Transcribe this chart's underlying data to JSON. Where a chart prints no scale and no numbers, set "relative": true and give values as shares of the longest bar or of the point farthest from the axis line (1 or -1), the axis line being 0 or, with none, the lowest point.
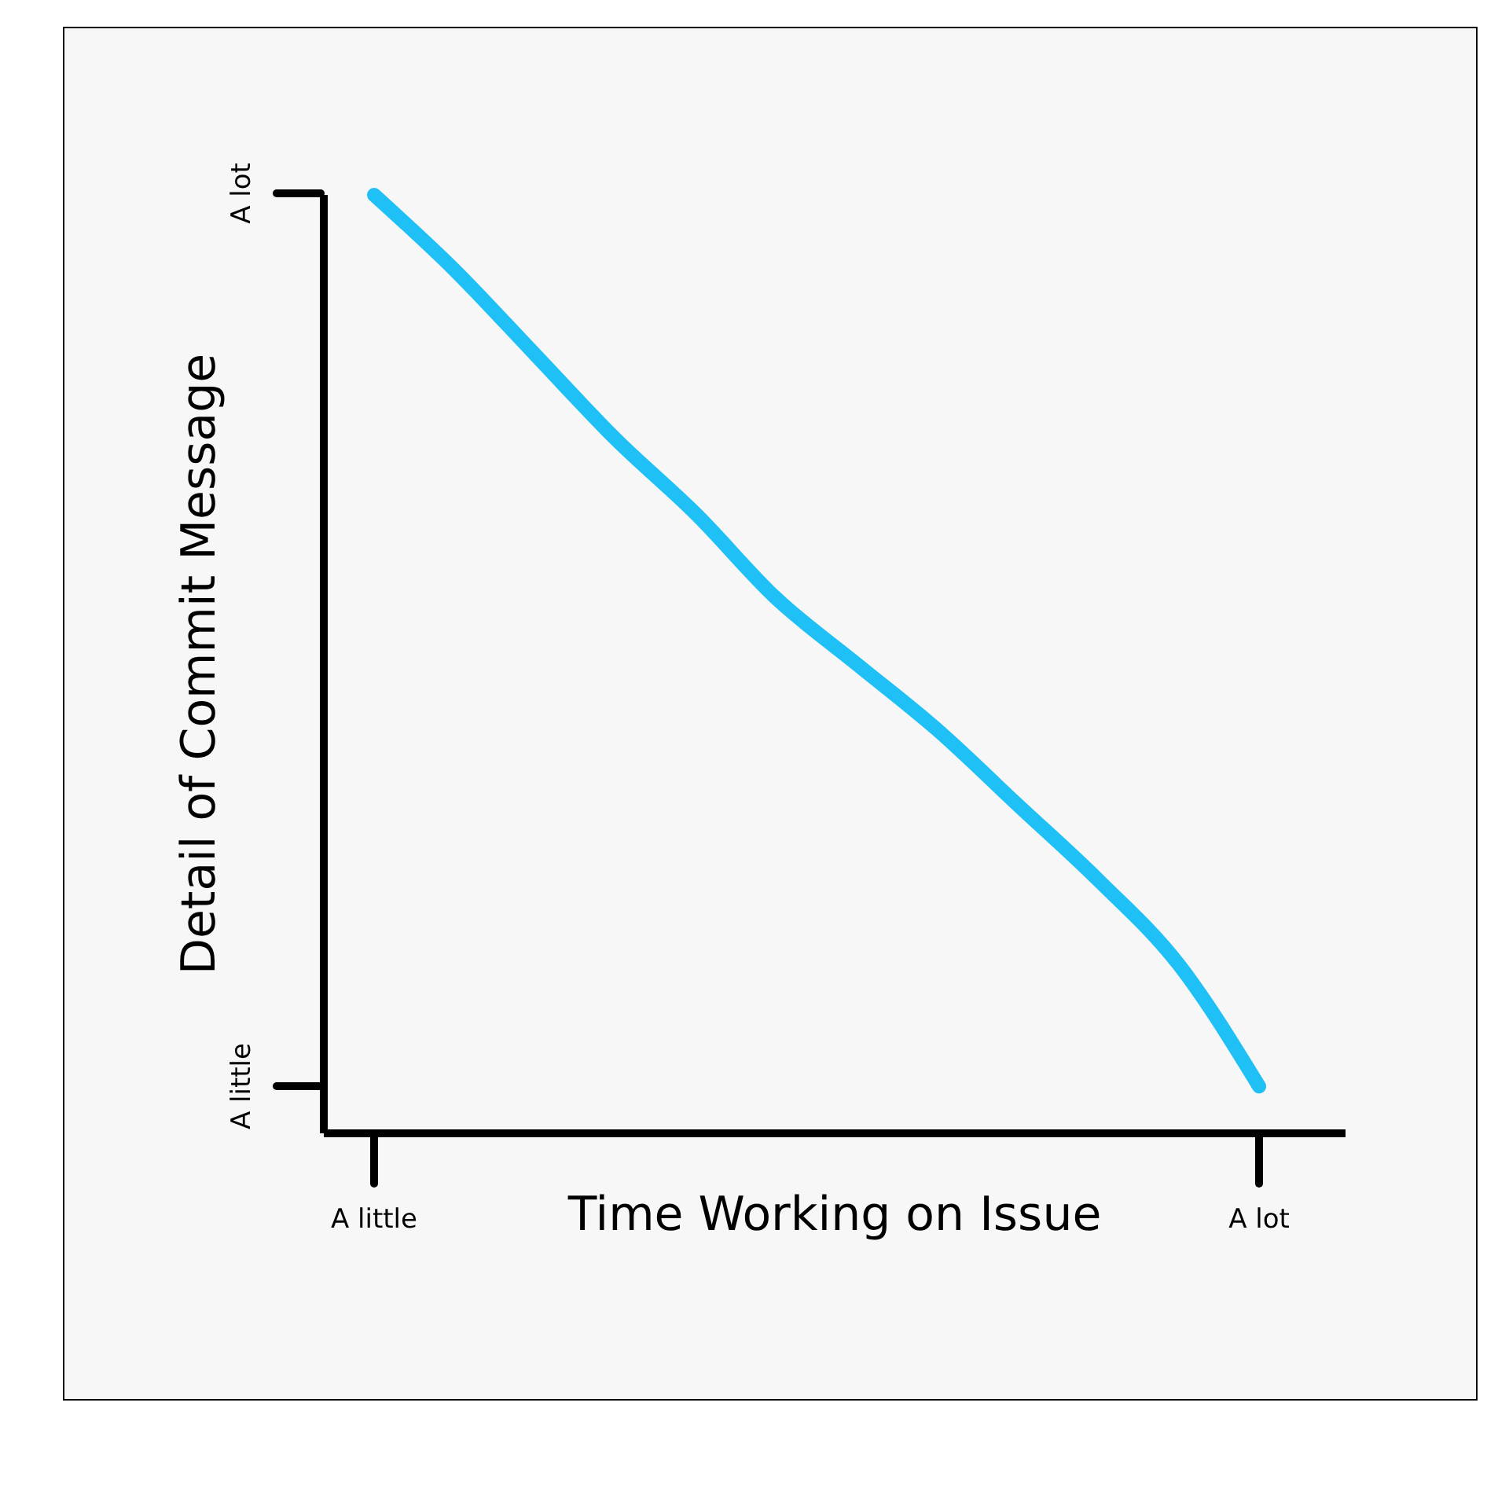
{
  "chart_data": {
    "type": "line",
    "xlabel": "Time Working on Issue",
    "ylabel": "Detail of Commit Message",
    "relative": true,
    "categories": [
      "A little",
      null,
      null,
      null,
      null,
      null,
      null,
      null,
      null,
      null,
      null,
      "A lot"
    ],
    "annotations": [
      "A little",
      "A lot"
    ],
    "values": [
      1,
      0.92,
      0.83,
      0.74,
      0.66,
      0.57,
      0.5,
      0.43,
      0.35,
      0.27,
      0.18,
      0.05
    ],
    "color": "#1ec0f5"
  }
}
